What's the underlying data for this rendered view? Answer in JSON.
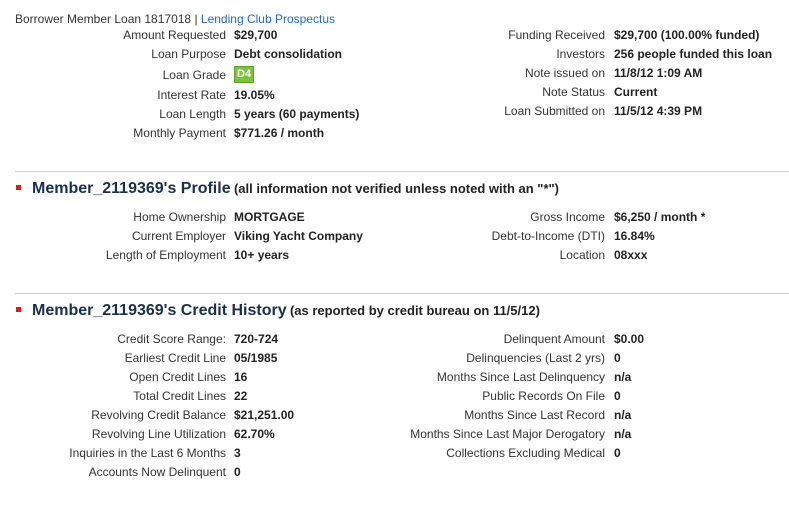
{
  "header": {
    "text": "Borrower Member Loan 1817018 |",
    "link": "Lending Club Prospectus"
  },
  "loan": {
    "left": [
      {
        "label": "Amount Requested",
        "value": "$29,700"
      },
      {
        "label": "Loan Purpose",
        "value": "Debt consolidation"
      },
      {
        "label": "Loan Grade",
        "value": "D4"
      },
      {
        "label": "Interest Rate",
        "value": "19.05%"
      },
      {
        "label": "Loan Length",
        "value": "5 years (60 payments)"
      },
      {
        "label": "Monthly Payment",
        "value": "$771.26 / month"
      }
    ],
    "right": [
      {
        "label": "Funding Received",
        "value": "$29,700 (100.00% funded)"
      },
      {
        "label": "Investors",
        "value": "256 people funded this loan"
      },
      {
        "label": "Note issued on",
        "value": "11/8/12 1:09 AM"
      },
      {
        "label": "Note Status",
        "value": "Current"
      },
      {
        "label": "Loan Submitted on",
        "value": "11/5/12 4:39 PM"
      }
    ]
  },
  "profile": {
    "title": "Member_2119369's Profile",
    "note": "(all information not verified unless noted with an \"*\")",
    "left": [
      {
        "label": "Home Ownership",
        "value": "MORTGAGE"
      },
      {
        "label": "Current Employer",
        "value": "Viking Yacht Company"
      },
      {
        "label": "Length of Employment",
        "value": "10+ years"
      }
    ],
    "right": [
      {
        "label": "Gross Income",
        "value": "$6,250 / month *"
      },
      {
        "label": "Debt-to-Income (DTI)",
        "value": "16.84%"
      },
      {
        "label": "Location",
        "value": "08xxx"
      }
    ]
  },
  "credit": {
    "title": "Member_2119369's Credit History",
    "note": "(as reported by credit bureau on 11/5/12)",
    "left": [
      {
        "label": "Credit Score Range:",
        "value": "720-724"
      },
      {
        "label": "Earliest Credit Line",
        "value": "05/1985"
      },
      {
        "label": "Open Credit Lines",
        "value": "16"
      },
      {
        "label": "Total Credit Lines",
        "value": "22"
      },
      {
        "label": "Revolving Credit Balance",
        "value": "$21,251.00"
      },
      {
        "label": "Revolving Line Utilization",
        "value": "62.70%"
      },
      {
        "label": "Inquiries in the Last 6 Months",
        "value": "3"
      },
      {
        "label": "Accounts Now Delinquent",
        "value": "0"
      }
    ],
    "right": [
      {
        "label": "Delinquent Amount",
        "value": "$0.00"
      },
      {
        "label": "Delinquencies (Last 2 yrs)",
        "value": "0"
      },
      {
        "label": "Months Since Last Delinquency",
        "value": "n/a"
      },
      {
        "label": "Public Records On File",
        "value": "0"
      },
      {
        "label": "Months Since Last Record",
        "value": "n/a"
      },
      {
        "label": "Months Since Last Major Derogatory",
        "value": "n/a"
      },
      {
        "label": "Collections Excluding Medical",
        "value": "0"
      }
    ]
  }
}
